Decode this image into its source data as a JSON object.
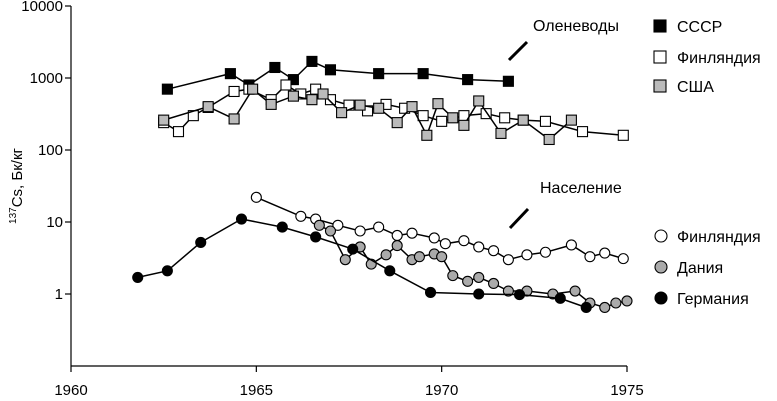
{
  "chart_data": {
    "type": "line",
    "title": "",
    "xlabel": "",
    "ylabel": {
      "superscript": "137",
      "main": "Cs, Бк/кг"
    },
    "x_axis": {
      "range": [
        1960,
        1975
      ],
      "ticks": [
        1960,
        1965,
        1970,
        1975
      ]
    },
    "y_axis": {
      "scale": "log",
      "range": [
        0.1,
        10000
      ],
      "ticks": [
        1,
        10,
        100,
        1000,
        10000
      ],
      "tick_labels": [
        "1",
        "10",
        "100",
        "1000",
        "10000"
      ]
    },
    "groups": [
      {
        "title": "Оленеводы",
        "series_indices": [
          0,
          1,
          2
        ]
      },
      {
        "title": "Население",
        "series_indices": [
          3,
          4,
          5
        ]
      }
    ],
    "series": [
      {
        "name": "СССР",
        "marker": "square",
        "fill": "#000000",
        "x": [
          1962.6,
          1964.3,
          1964.8,
          1965.5,
          1966.0,
          1966.5,
          1967.0,
          1968.3,
          1969.5,
          1970.7,
          1971.8
        ],
        "y": [
          700,
          1150,
          800,
          1400,
          950,
          1700,
          1300,
          1150,
          1150,
          950,
          900
        ]
      },
      {
        "name": "Финляндия",
        "marker": "square",
        "fill": "#ffffff",
        "x": [
          1962.5,
          1962.9,
          1963.3,
          1963.7,
          1964.4,
          1964.8,
          1965.4,
          1965.8,
          1966.2,
          1966.6,
          1967.0,
          1967.5,
          1968.0,
          1968.5,
          1969.0,
          1969.5,
          1970.0,
          1970.6,
          1971.2,
          1971.7,
          1972.2,
          1972.8,
          1973.8,
          1974.9
        ],
        "y": [
          240,
          180,
          300,
          390,
          650,
          700,
          500,
          800,
          600,
          700,
          500,
          420,
          350,
          430,
          380,
          300,
          250,
          300,
          320,
          280,
          260,
          250,
          180,
          160
        ]
      },
      {
        "name": "США",
        "marker": "square",
        "fill": "#bbbbbb",
        "x": [
          1962.5,
          1963.7,
          1964.4,
          1964.9,
          1965.4,
          1966.0,
          1966.5,
          1966.8,
          1967.3,
          1967.8,
          1968.3,
          1968.8,
          1969.2,
          1969.6,
          1969.9,
          1970.3,
          1970.6,
          1971.0,
          1971.6,
          1972.2,
          1972.9,
          1973.5
        ],
        "y": [
          260,
          400,
          270,
          700,
          430,
          560,
          500,
          600,
          330,
          420,
          380,
          240,
          400,
          160,
          440,
          280,
          220,
          480,
          170,
          260,
          140,
          260
        ]
      },
      {
        "name": "Финляндия",
        "marker": "circle",
        "fill": "#ffffff",
        "x": [
          1965.0,
          1966.2,
          1966.6,
          1967.2,
          1967.8,
          1968.3,
          1968.8,
          1969.2,
          1969.8,
          1970.1,
          1970.6,
          1971.0,
          1971.4,
          1971.8,
          1972.3,
          1972.8,
          1973.5,
          1974.0,
          1974.4,
          1974.9
        ],
        "y": [
          22,
          12,
          11,
          9,
          7.5,
          8.5,
          6.5,
          7,
          6.0,
          5.0,
          5.5,
          4.5,
          4.0,
          3.0,
          3.5,
          3.8,
          4.8,
          3.3,
          3.7,
          3.1
        ]
      },
      {
        "name": "Дания",
        "marker": "circle",
        "fill": "#aaaaaa",
        "x": [
          1966.7,
          1967.0,
          1967.4,
          1967.8,
          1968.1,
          1968.5,
          1968.8,
          1969.2,
          1969.4,
          1969.8,
          1970.0,
          1970.3,
          1970.7,
          1971.0,
          1971.4,
          1971.8,
          1972.3,
          1973.0,
          1973.6,
          1974.0,
          1974.4,
          1974.7,
          1975.0
        ],
        "y": [
          9,
          7.5,
          3.0,
          4.5,
          2.6,
          3.5,
          4.7,
          3.0,
          3.3,
          3.6,
          3.3,
          1.8,
          1.5,
          1.7,
          1.4,
          1.1,
          1.1,
          1.0,
          1.1,
          0.75,
          0.65,
          0.75,
          0.8
        ]
      },
      {
        "name": "Германия",
        "marker": "circle",
        "fill": "#000000",
        "x": [
          1961.8,
          1962.6,
          1963.5,
          1964.6,
          1965.7,
          1966.6,
          1967.6,
          1968.6,
          1969.7,
          1971.0,
          1972.1,
          1973.2,
          1973.9
        ],
        "y": [
          1.7,
          2.1,
          5.2,
          11,
          8.5,
          6.2,
          4.2,
          2.1,
          1.05,
          1.0,
          0.98,
          0.87,
          0.65
        ]
      }
    ]
  }
}
